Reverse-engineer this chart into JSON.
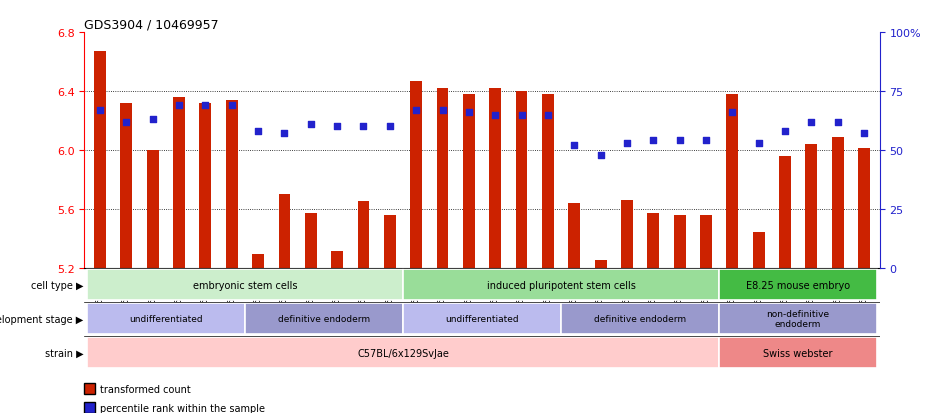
{
  "title": "GDS3904 / 10469957",
  "samples": [
    "GSM668567",
    "GSM668568",
    "GSM668569",
    "GSM668582",
    "GSM668583",
    "GSM668584",
    "GSM668564",
    "GSM668565",
    "GSM668566",
    "GSM668579",
    "GSM668580",
    "GSM668581",
    "GSM668585",
    "GSM668586",
    "GSM668587",
    "GSM668588",
    "GSM668589",
    "GSM668590",
    "GSM668576",
    "GSM668577",
    "GSM668578",
    "GSM668591",
    "GSM668592",
    "GSM668593",
    "GSM668573",
    "GSM668574",
    "GSM668575",
    "GSM668570",
    "GSM668571",
    "GSM668572"
  ],
  "bar_values": [
    6.67,
    6.32,
    6.0,
    6.36,
    6.32,
    6.34,
    5.29,
    5.7,
    5.57,
    5.31,
    5.65,
    5.56,
    6.47,
    6.42,
    6.38,
    6.42,
    6.4,
    6.38,
    5.64,
    5.25,
    5.66,
    5.57,
    5.56,
    5.56,
    6.38,
    5.44,
    5.96,
    6.04,
    6.09,
    6.01
  ],
  "pct_values": [
    67,
    62,
    63,
    69,
    69,
    69,
    58,
    57,
    61,
    60,
    60,
    60,
    67,
    67,
    66,
    65,
    65,
    65,
    52,
    48,
    53,
    54,
    54,
    54,
    66,
    53,
    58,
    62,
    62,
    57
  ],
  "ymin": 5.2,
  "ymax": 6.8,
  "bar_color": "#cc2200",
  "pct_color": "#2222cc",
  "grid_values": [
    5.6,
    6.0,
    6.4
  ],
  "cell_type_groups": [
    {
      "label": "embryonic stem cells",
      "start": 0,
      "end": 12,
      "color": "#cceecc"
    },
    {
      "label": "induced pluripotent stem cells",
      "start": 12,
      "end": 24,
      "color": "#99dd99"
    },
    {
      "label": "E8.25 mouse embryo",
      "start": 24,
      "end": 30,
      "color": "#44bb44"
    }
  ],
  "dev_stage_groups": [
    {
      "label": "undifferentiated",
      "start": 0,
      "end": 6,
      "color": "#bbbbee"
    },
    {
      "label": "definitive endoderm",
      "start": 6,
      "end": 12,
      "color": "#9999cc"
    },
    {
      "label": "undifferentiated",
      "start": 12,
      "end": 18,
      "color": "#bbbbee"
    },
    {
      "label": "definitive endoderm",
      "start": 18,
      "end": 24,
      "color": "#9999cc"
    },
    {
      "label": "non-definitive\nendoderm",
      "start": 24,
      "end": 30,
      "color": "#9999cc"
    }
  ],
  "strain_groups": [
    {
      "label": "C57BL/6x129SvJae",
      "start": 0,
      "end": 24,
      "color": "#ffcccc"
    },
    {
      "label": "Swiss webster",
      "start": 24,
      "end": 30,
      "color": "#ee8888"
    }
  ],
  "row_labels": [
    "cell type",
    "development stage",
    "strain"
  ],
  "bar_bottom": 5.2
}
